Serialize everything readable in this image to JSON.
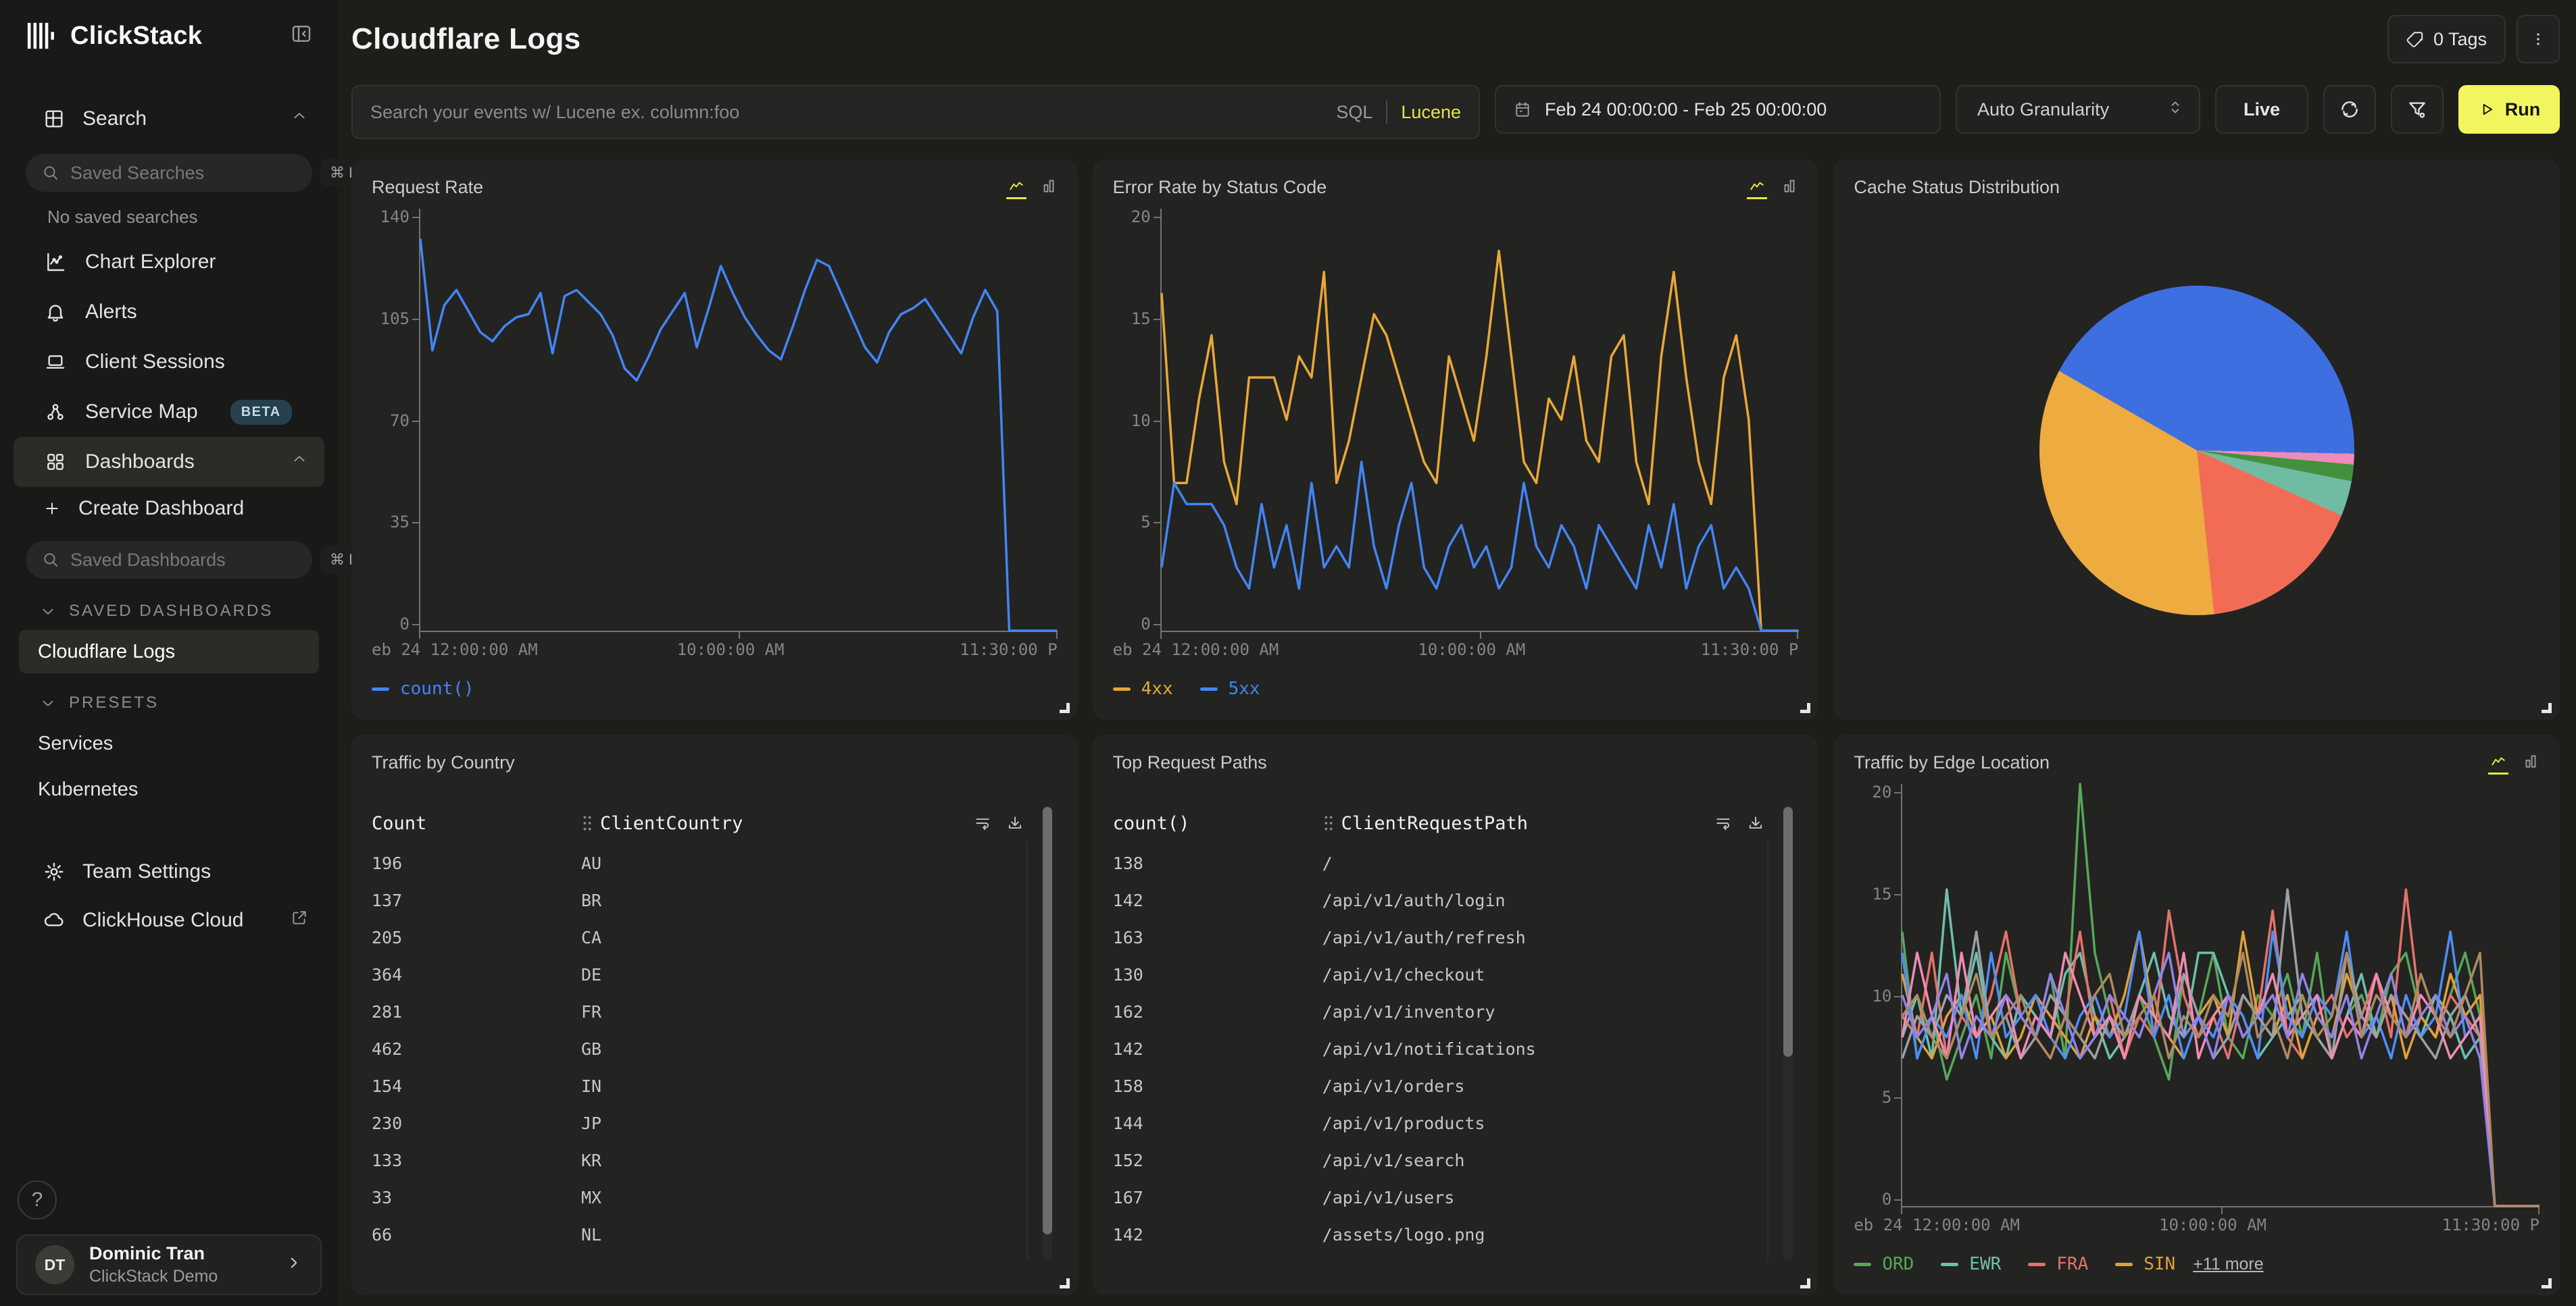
{
  "app": {
    "name": "ClickStack"
  },
  "sidebar": {
    "search_label": "Search",
    "saved_searches_placeholder": "Saved Searches",
    "saved_searches_shortcut": "⌘ K",
    "no_saved_searches": "No saved searches",
    "items": [
      {
        "label": "Chart Explorer"
      },
      {
        "label": "Alerts"
      },
      {
        "label": "Client Sessions"
      },
      {
        "label": "Service Map",
        "badge": "BETA"
      },
      {
        "label": "Dashboards"
      }
    ],
    "create_dashboard_label": "Create Dashboard",
    "saved_dashboards_placeholder": "Saved Dashboards",
    "saved_dashboards_shortcut": "⌘ K",
    "saved_dashboards_group": "SAVED DASHBOARDS",
    "saved_dashboards": [
      {
        "label": "Cloudflare Logs"
      }
    ],
    "presets_group": "PRESETS",
    "presets": [
      {
        "label": "Services"
      },
      {
        "label": "Kubernetes"
      }
    ],
    "team_settings_label": "Team Settings",
    "clickhouse_cloud_label": "ClickHouse Cloud",
    "help_label": "?",
    "user": {
      "initials": "DT",
      "name": "Dominic Tran",
      "org": "ClickStack Demo"
    }
  },
  "header": {
    "title": "Cloudflare Logs",
    "tags_label": "0 Tags"
  },
  "toolbar": {
    "search_placeholder": "Search your events w/ Lucene ex. column:foo",
    "sql_label": "SQL",
    "lucene_label": "Lucene",
    "date_range": "Feb 24 00:00:00 - Feb 25 00:00:00",
    "granularity": "Auto Granularity",
    "live_label": "Live",
    "run_label": "Run"
  },
  "colors": {
    "accent_yellow": "#f2f65e",
    "lucene_yellow": "#e6e63c",
    "line_blue": "#4285f4",
    "line_orange": "#e8a838",
    "beta_badge_bg": "#26404e",
    "beta_badge_text": "#c4d9ea"
  },
  "chart_data": [
    {
      "type": "line",
      "title": "Request Rate",
      "ylim": [
        0,
        140
      ],
      "ymax": 140,
      "y_ticks": [
        140,
        105,
        70,
        35,
        0
      ],
      "x_ticks": [
        "eb 24 12:00:00 AM",
        "10:00:00 AM",
        "11:30:00 P"
      ],
      "grid": false,
      "legend_position": "bottom",
      "series": [
        {
          "name": "count()",
          "color": "#4285f4",
          "values": [
            130,
            93,
            108,
            113,
            106,
            99,
            96,
            101,
            104,
            105,
            112,
            92,
            111,
            113,
            109,
            105,
            98,
            87,
            83,
            91,
            100,
            106,
            112,
            94,
            107,
            121,
            112,
            104,
            98,
            93,
            90,
            101,
            113,
            123,
            121,
            112,
            103,
            94,
            89,
            99,
            105,
            107,
            110,
            104,
            98,
            92,
            104,
            113,
            106,
            0,
            0,
            0,
            0,
            0
          ]
        }
      ]
    },
    {
      "type": "line",
      "title": "Error Rate by Status Code",
      "ylim": [
        0,
        20
      ],
      "ymax": 20,
      "y_ticks": [
        20,
        15,
        10,
        5,
        0
      ],
      "x_ticks": [
        "eb 24 12:00:00 AM",
        "10:00:00 AM",
        "11:30:00 P"
      ],
      "grid": false,
      "legend_position": "bottom",
      "series": [
        {
          "name": "4xx",
          "color": "#e8a838",
          "values": [
            16,
            7,
            7,
            11,
            14,
            8,
            6,
            12,
            12,
            12,
            10,
            13,
            12,
            17,
            7,
            9,
            12,
            15,
            14,
            12,
            10,
            8,
            7,
            13,
            11,
            9,
            13,
            18,
            13,
            8,
            7,
            11,
            10,
            13,
            9,
            8,
            13,
            14,
            8,
            6,
            13,
            17,
            12,
            8,
            6,
            12,
            14,
            10,
            0,
            0,
            0,
            0
          ]
        },
        {
          "name": "5xx",
          "color": "#4285f4",
          "values": [
            3,
            7,
            6,
            6,
            6,
            5,
            3,
            2,
            6,
            3,
            5,
            2,
            7,
            3,
            4,
            3,
            8,
            4,
            2,
            5,
            7,
            3,
            2,
            4,
            5,
            3,
            4,
            2,
            3,
            7,
            4,
            3,
            5,
            4,
            2,
            5,
            4,
            3,
            2,
            5,
            3,
            6,
            2,
            4,
            5,
            2,
            3,
            2,
            0,
            0,
            0,
            0
          ]
        }
      ]
    },
    {
      "type": "pie",
      "title": "Cache Status Distribution",
      "start_angle_deg": 300,
      "slices": [
        {
          "color": "#3e6fe1",
          "pct": 42.0
        },
        {
          "color": "#ef8bb7",
          "pct": 1.1
        },
        {
          "color": "#43913f",
          "pct": 1.7
        },
        {
          "color": "#6fbca3",
          "pct": 3.6
        },
        {
          "color": "#f26c55",
          "pct": 16.6
        },
        {
          "color": "#edab40",
          "pct": 35.0
        }
      ]
    },
    {
      "type": "table",
      "title": "Traffic by Country",
      "columns": [
        "Count",
        "ClientCountry"
      ],
      "rows": [
        [
          "196",
          "AU"
        ],
        [
          "137",
          "BR"
        ],
        [
          "205",
          "CA"
        ],
        [
          "364",
          "DE"
        ],
        [
          "281",
          "FR"
        ],
        [
          "462",
          "GB"
        ],
        [
          "154",
          "IN"
        ],
        [
          "230",
          "JP"
        ],
        [
          "133",
          "KR"
        ],
        [
          "33",
          "MX"
        ],
        [
          "66",
          "NL"
        ]
      ]
    },
    {
      "type": "table",
      "title": "Top Request Paths",
      "columns": [
        "count()",
        "ClientRequestPath"
      ],
      "rows": [
        [
          "138",
          "/"
        ],
        [
          "142",
          "/api/v1/auth/login"
        ],
        [
          "163",
          "/api/v1/auth/refresh"
        ],
        [
          "130",
          "/api/v1/checkout"
        ],
        [
          "162",
          "/api/v1/inventory"
        ],
        [
          "142",
          "/api/v1/notifications"
        ],
        [
          "158",
          "/api/v1/orders"
        ],
        [
          "144",
          "/api/v1/products"
        ],
        [
          "152",
          "/api/v1/search"
        ],
        [
          "167",
          "/api/v1/users"
        ],
        [
          "142",
          "/assets/logo.png"
        ]
      ]
    },
    {
      "type": "line",
      "title": "Traffic by Edge Location",
      "ylim": [
        0,
        20
      ],
      "ymax": 20,
      "y_ticks": [
        20,
        15,
        10,
        5,
        0
      ],
      "x_ticks": [
        "eb 24 12:00:00 AM",
        "10:00:00 AM",
        "11:30:00 P"
      ],
      "grid": false,
      "legend_position": "bottom",
      "legend_more": "+11 more",
      "series": [
        {
          "name": "ORD",
          "color": "#57a759",
          "values": [
            13,
            7,
            9,
            6,
            8,
            10,
            7,
            12,
            9,
            8,
            11,
            7,
            20,
            12,
            9,
            7,
            10,
            8,
            6,
            11,
            9,
            12,
            8,
            7,
            10,
            9,
            11,
            8,
            12,
            7,
            9,
            10,
            8,
            11,
            12,
            9,
            8,
            10,
            12,
            9,
            0,
            0,
            0,
            0
          ]
        },
        {
          "name": "EWR",
          "color": "#6cc0ad",
          "values": [
            8,
            10,
            7,
            15,
            9,
            12,
            8,
            7,
            10,
            9,
            8,
            11,
            12,
            9,
            7,
            8,
            10,
            12,
            9,
            8,
            12,
            12,
            10,
            9,
            7,
            8,
            9,
            10,
            8,
            7,
            9,
            11,
            8,
            10,
            9,
            8,
            10,
            9,
            7,
            8,
            0,
            0,
            0,
            0
          ]
        },
        {
          "name": "FRA",
          "color": "#e5726a",
          "values": [
            9,
            8,
            12,
            7,
            9,
            8,
            10,
            13,
            9,
            8,
            7,
            9,
            13,
            8,
            10,
            7,
            9,
            8,
            14,
            10,
            8,
            9,
            7,
            10,
            9,
            14,
            8,
            7,
            9,
            10,
            8,
            9,
            11,
            8,
            15,
            9,
            8,
            10,
            9,
            8,
            0,
            0,
            0,
            0
          ]
        },
        {
          "name": "SIN",
          "color": "#dfa13b",
          "values": [
            11,
            8,
            7,
            9,
            10,
            8,
            9,
            7,
            8,
            10,
            9,
            8,
            7,
            9,
            8,
            10,
            13,
            9,
            8,
            7,
            9,
            10,
            8,
            13,
            9,
            8,
            10,
            7,
            9,
            8,
            11,
            9,
            8,
            10,
            7,
            9,
            8,
            11,
            9,
            10,
            0,
            0,
            0,
            0
          ]
        },
        {
          "name": "",
          "color": "#4e8ef7",
          "values": [
            12,
            7,
            9,
            8,
            10,
            7,
            12,
            8,
            9,
            10,
            8,
            7,
            9,
            10,
            8,
            9,
            13,
            8,
            10,
            7,
            9,
            8,
            10,
            9,
            7,
            13,
            9,
            8,
            10,
            9,
            13,
            8,
            9,
            7,
            10,
            8,
            9,
            13,
            8,
            9,
            0,
            0,
            0,
            0
          ]
        },
        {
          "name": "",
          "color": "#9aa0a6",
          "values": [
            7,
            9,
            8,
            10,
            9,
            13,
            8,
            9,
            7,
            8,
            10,
            9,
            8,
            7,
            9,
            8,
            10,
            9,
            8,
            11,
            9,
            7,
            8,
            10,
            9,
            8,
            15,
            9,
            8,
            7,
            12,
            9,
            8,
            10,
            9,
            8,
            7,
            9,
            10,
            8,
            0,
            0,
            0,
            0
          ]
        },
        {
          "name": "",
          "color": "#f08bb4",
          "values": [
            8,
            12,
            9,
            7,
            12,
            8,
            9,
            10,
            7,
            9,
            8,
            12,
            10,
            8,
            9,
            7,
            10,
            9,
            8,
            12,
            7,
            9,
            10,
            8,
            9,
            11,
            8,
            9,
            10,
            7,
            9,
            8,
            11,
            9,
            8,
            10,
            9,
            7,
            8,
            9,
            0,
            0,
            0,
            0
          ]
        },
        {
          "name": "",
          "color": "#8f83e8",
          "values": [
            10,
            8,
            9,
            11,
            7,
            9,
            8,
            10,
            9,
            8,
            11,
            9,
            7,
            8,
            10,
            9,
            8,
            10,
            12,
            8,
            9,
            7,
            10,
            8,
            9,
            10,
            8,
            11,
            9,
            8,
            10,
            7,
            9,
            11,
            8,
            9,
            10,
            8,
            9,
            7,
            0,
            0,
            0,
            0
          ]
        },
        {
          "name": "",
          "color": "#ad8a62",
          "values": [
            9,
            10,
            8,
            7,
            9,
            11,
            8,
            9,
            10,
            8,
            7,
            9,
            8,
            10,
            11,
            8,
            9,
            10,
            7,
            9,
            8,
            10,
            9,
            12,
            8,
            9,
            7,
            10,
            8,
            9,
            12,
            8,
            10,
            9,
            8,
            11,
            9,
            8,
            10,
            12,
            0,
            0,
            0,
            0
          ]
        }
      ]
    }
  ]
}
